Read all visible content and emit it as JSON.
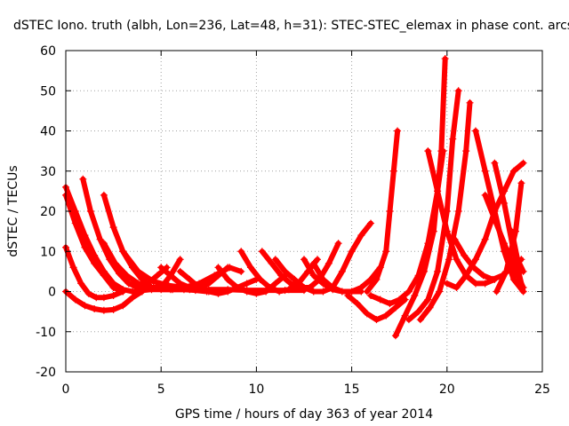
{
  "chart_data": {
    "type": "scatter",
    "title": "dSTEC Iono. truth (albh, Lon=236, Lat=48, h=31): STEC-STEC_elemax in phase cont. arcs",
    "xlabel": "GPS time / hours of day 363 of year 2014",
    "ylabel": "dSTEC  / TECUs",
    "xlim": [
      0,
      25
    ],
    "ylim": [
      -20,
      60
    ],
    "xticks": [
      0,
      5,
      10,
      15,
      20,
      25
    ],
    "yticks": [
      -20,
      -10,
      0,
      10,
      20,
      30,
      40,
      50,
      60
    ],
    "grid": true,
    "marker": "plus",
    "color": "#ff0000",
    "series": [
      {
        "x": [
          0.0,
          0.5,
          1.0,
          1.5,
          2.0,
          2.5,
          3.0,
          3.5,
          4.0
        ],
        "y": [
          26,
          20,
          14,
          9,
          5,
          2,
          0.5,
          0,
          0
        ]
      },
      {
        "x": [
          0.0,
          0.5,
          1.0,
          1.5,
          2.0,
          2.5,
          3.0
        ],
        "y": [
          24,
          17,
          11,
          7,
          4,
          1,
          0
        ]
      },
      {
        "x": [
          0.0,
          0.4,
          0.8,
          1.2,
          1.6,
          2.0,
          2.5,
          3.0
        ],
        "y": [
          11,
          6,
          2,
          -0.5,
          -1.5,
          -1.5,
          -1,
          0
        ]
      },
      {
        "x": [
          0.0,
          0.5,
          1.0,
          1.5,
          2.0,
          2.5,
          3.0,
          3.5,
          4.0
        ],
        "y": [
          0,
          -2,
          -3.5,
          -4.3,
          -4.7,
          -4.5,
          -3.5,
          -1.5,
          0
        ]
      },
      {
        "x": [
          0.9,
          1.3,
          1.8,
          2.3,
          2.8,
          3.3,
          3.8,
          4.3,
          4.8,
          5.3
        ],
        "y": [
          28,
          20,
          13,
          8,
          4.5,
          2,
          1,
          2,
          4,
          6
        ]
      },
      {
        "x": [
          2.0,
          2.5,
          3.0,
          3.5,
          4.0,
          4.5,
          5.0,
          5.5,
          6.0
        ],
        "y": [
          24,
          16,
          10,
          6,
          3,
          1,
          1,
          4,
          8
        ]
      },
      {
        "x": [
          2.0,
          2.6,
          3.2,
          3.8,
          4.4,
          5.0,
          5.6,
          6.2,
          6.8,
          7.4
        ],
        "y": [
          12,
          7,
          4,
          2,
          1,
          0.5,
          0.5,
          0.5,
          0.3,
          0
        ]
      },
      {
        "x": [
          3.0,
          3.8,
          4.6,
          5.4,
          6.2,
          7.0,
          7.8,
          8.6,
          9.2
        ],
        "y": [
          10,
          5,
          2.5,
          1.5,
          1,
          2,
          4,
          6,
          5
        ]
      },
      {
        "x": [
          3.5,
          4.5,
          5.5,
          6.5,
          7.5,
          8.5,
          9.5,
          10.5,
          11.5,
          12.5
        ],
        "y": [
          0,
          0.5,
          0.5,
          0.5,
          0.5,
          0.5,
          0.3,
          0.3,
          0.3,
          0.3
        ]
      },
      {
        "x": [
          5.0,
          5.5,
          6.0,
          6.5,
          7.0,
          7.5,
          8.0,
          8.5
        ],
        "y": [
          6,
          4,
          2,
          1,
          1,
          2,
          4,
          6
        ]
      },
      {
        "x": [
          6.0,
          6.5,
          7.0,
          7.5,
          8.0,
          8.5,
          9.0,
          9.5,
          10.0
        ],
        "y": [
          5,
          3,
          1,
          0,
          -0.5,
          0,
          1,
          2,
          3
        ]
      },
      {
        "x": [
          8.0,
          8.5,
          9.0,
          9.5,
          10.0,
          10.5,
          11.0,
          11.5
        ],
        "y": [
          6,
          3,
          1,
          0,
          -0.5,
          0,
          2,
          4
        ]
      },
      {
        "x": [
          9.2,
          9.7,
          10.2,
          10.7,
          11.2,
          11.7,
          12.2,
          12.7,
          13.2
        ],
        "y": [
          10,
          6,
          3,
          1,
          0,
          0.5,
          2,
          5,
          8
        ]
      },
      {
        "x": [
          10.3,
          10.8,
          11.3,
          11.8,
          12.3,
          12.8,
          13.3,
          13.8,
          14.3
        ],
        "y": [
          10,
          7,
          4,
          2,
          1,
          1,
          3,
          7,
          12
        ]
      },
      {
        "x": [
          11.0,
          11.5,
          12.0,
          12.5,
          13.0,
          13.5,
          14.0,
          14.5,
          15.0,
          15.5,
          16.0
        ],
        "y": [
          8,
          5,
          3,
          1,
          0,
          0,
          1,
          5,
          10,
          14,
          17
        ]
      },
      {
        "x": [
          12.5,
          13.0,
          13.5,
          14.0,
          14.5,
          15.0,
          15.5
        ],
        "y": [
          8,
          4,
          2,
          0.5,
          0,
          0,
          0
        ]
      },
      {
        "x": [
          13.0,
          13.5,
          14.0,
          14.5,
          15.0,
          15.5,
          16.0,
          16.5
        ],
        "y": [
          7,
          3,
          1,
          0,
          0,
          1,
          3,
          6
        ]
      },
      {
        "x": [
          14.8,
          15.3,
          15.8,
          16.3,
          16.8,
          17.3,
          17.8
        ],
        "y": [
          -1,
          -3,
          -5.5,
          -7,
          -6,
          -4,
          -2
        ]
      },
      {
        "x": [
          15.8,
          16.3,
          16.8,
          17.0,
          17.2,
          17.4
        ],
        "y": [
          0,
          3,
          10,
          20,
          30,
          40
        ]
      },
      {
        "x": [
          16.0,
          16.5,
          17.0,
          17.5,
          18.0,
          18.5,
          19.0,
          19.5,
          19.8
        ],
        "y": [
          -1,
          -2,
          -3,
          -2,
          0,
          4,
          12,
          25,
          35
        ]
      },
      {
        "x": [
          17.3,
          17.8,
          18.3,
          18.8,
          19.3,
          19.7,
          19.9
        ],
        "y": [
          -11,
          -6,
          -1,
          5,
          15,
          35,
          58
        ]
      },
      {
        "x": [
          18.0,
          18.5,
          19.0,
          19.5,
          20.0,
          20.3,
          20.6
        ],
        "y": [
          -7,
          -5,
          -2,
          5,
          20,
          38,
          50
        ]
      },
      {
        "x": [
          18.6,
          19.1,
          19.6,
          20.1,
          20.6,
          21.0,
          21.2
        ],
        "y": [
          -7,
          -4,
          0,
          8,
          20,
          35,
          47
        ]
      },
      {
        "x": [
          19.0,
          19.5,
          20.0,
          20.5,
          21.0,
          21.5,
          22.0,
          22.5
        ],
        "y": [
          35,
          25,
          15,
          8,
          4,
          2,
          2,
          3
        ]
      },
      {
        "x": [
          20.0,
          20.5,
          21.0,
          21.5,
          22.0,
          22.5,
          23.0,
          23.5,
          24.0
        ],
        "y": [
          2,
          1,
          4,
          8,
          13,
          20,
          25,
          30,
          32
        ]
      },
      {
        "x": [
          20.4,
          20.9,
          21.4,
          21.9,
          22.4,
          22.9,
          23.4,
          23.9
        ],
        "y": [
          13,
          9,
          6,
          4,
          3,
          4,
          6,
          8
        ]
      },
      {
        "x": [
          21.5,
          22.0,
          22.5,
          23.0,
          23.5,
          24.0
        ],
        "y": [
          40,
          30,
          20,
          10,
          3,
          0
        ]
      },
      {
        "x": [
          22.0,
          22.5,
          23.0,
          23.5,
          24.0
        ],
        "y": [
          24,
          18,
          12,
          6,
          1
        ]
      },
      {
        "x": [
          22.5,
          23.0,
          23.5,
          24.0
        ],
        "y": [
          32,
          22,
          10,
          0
        ]
      },
      {
        "x": [
          22.6,
          23.1,
          23.6,
          23.9
        ],
        "y": [
          0,
          5,
          15,
          27
        ]
      },
      {
        "x": [
          23.4,
          23.7,
          24.0
        ],
        "y": [
          15,
          8,
          5
        ]
      }
    ]
  }
}
